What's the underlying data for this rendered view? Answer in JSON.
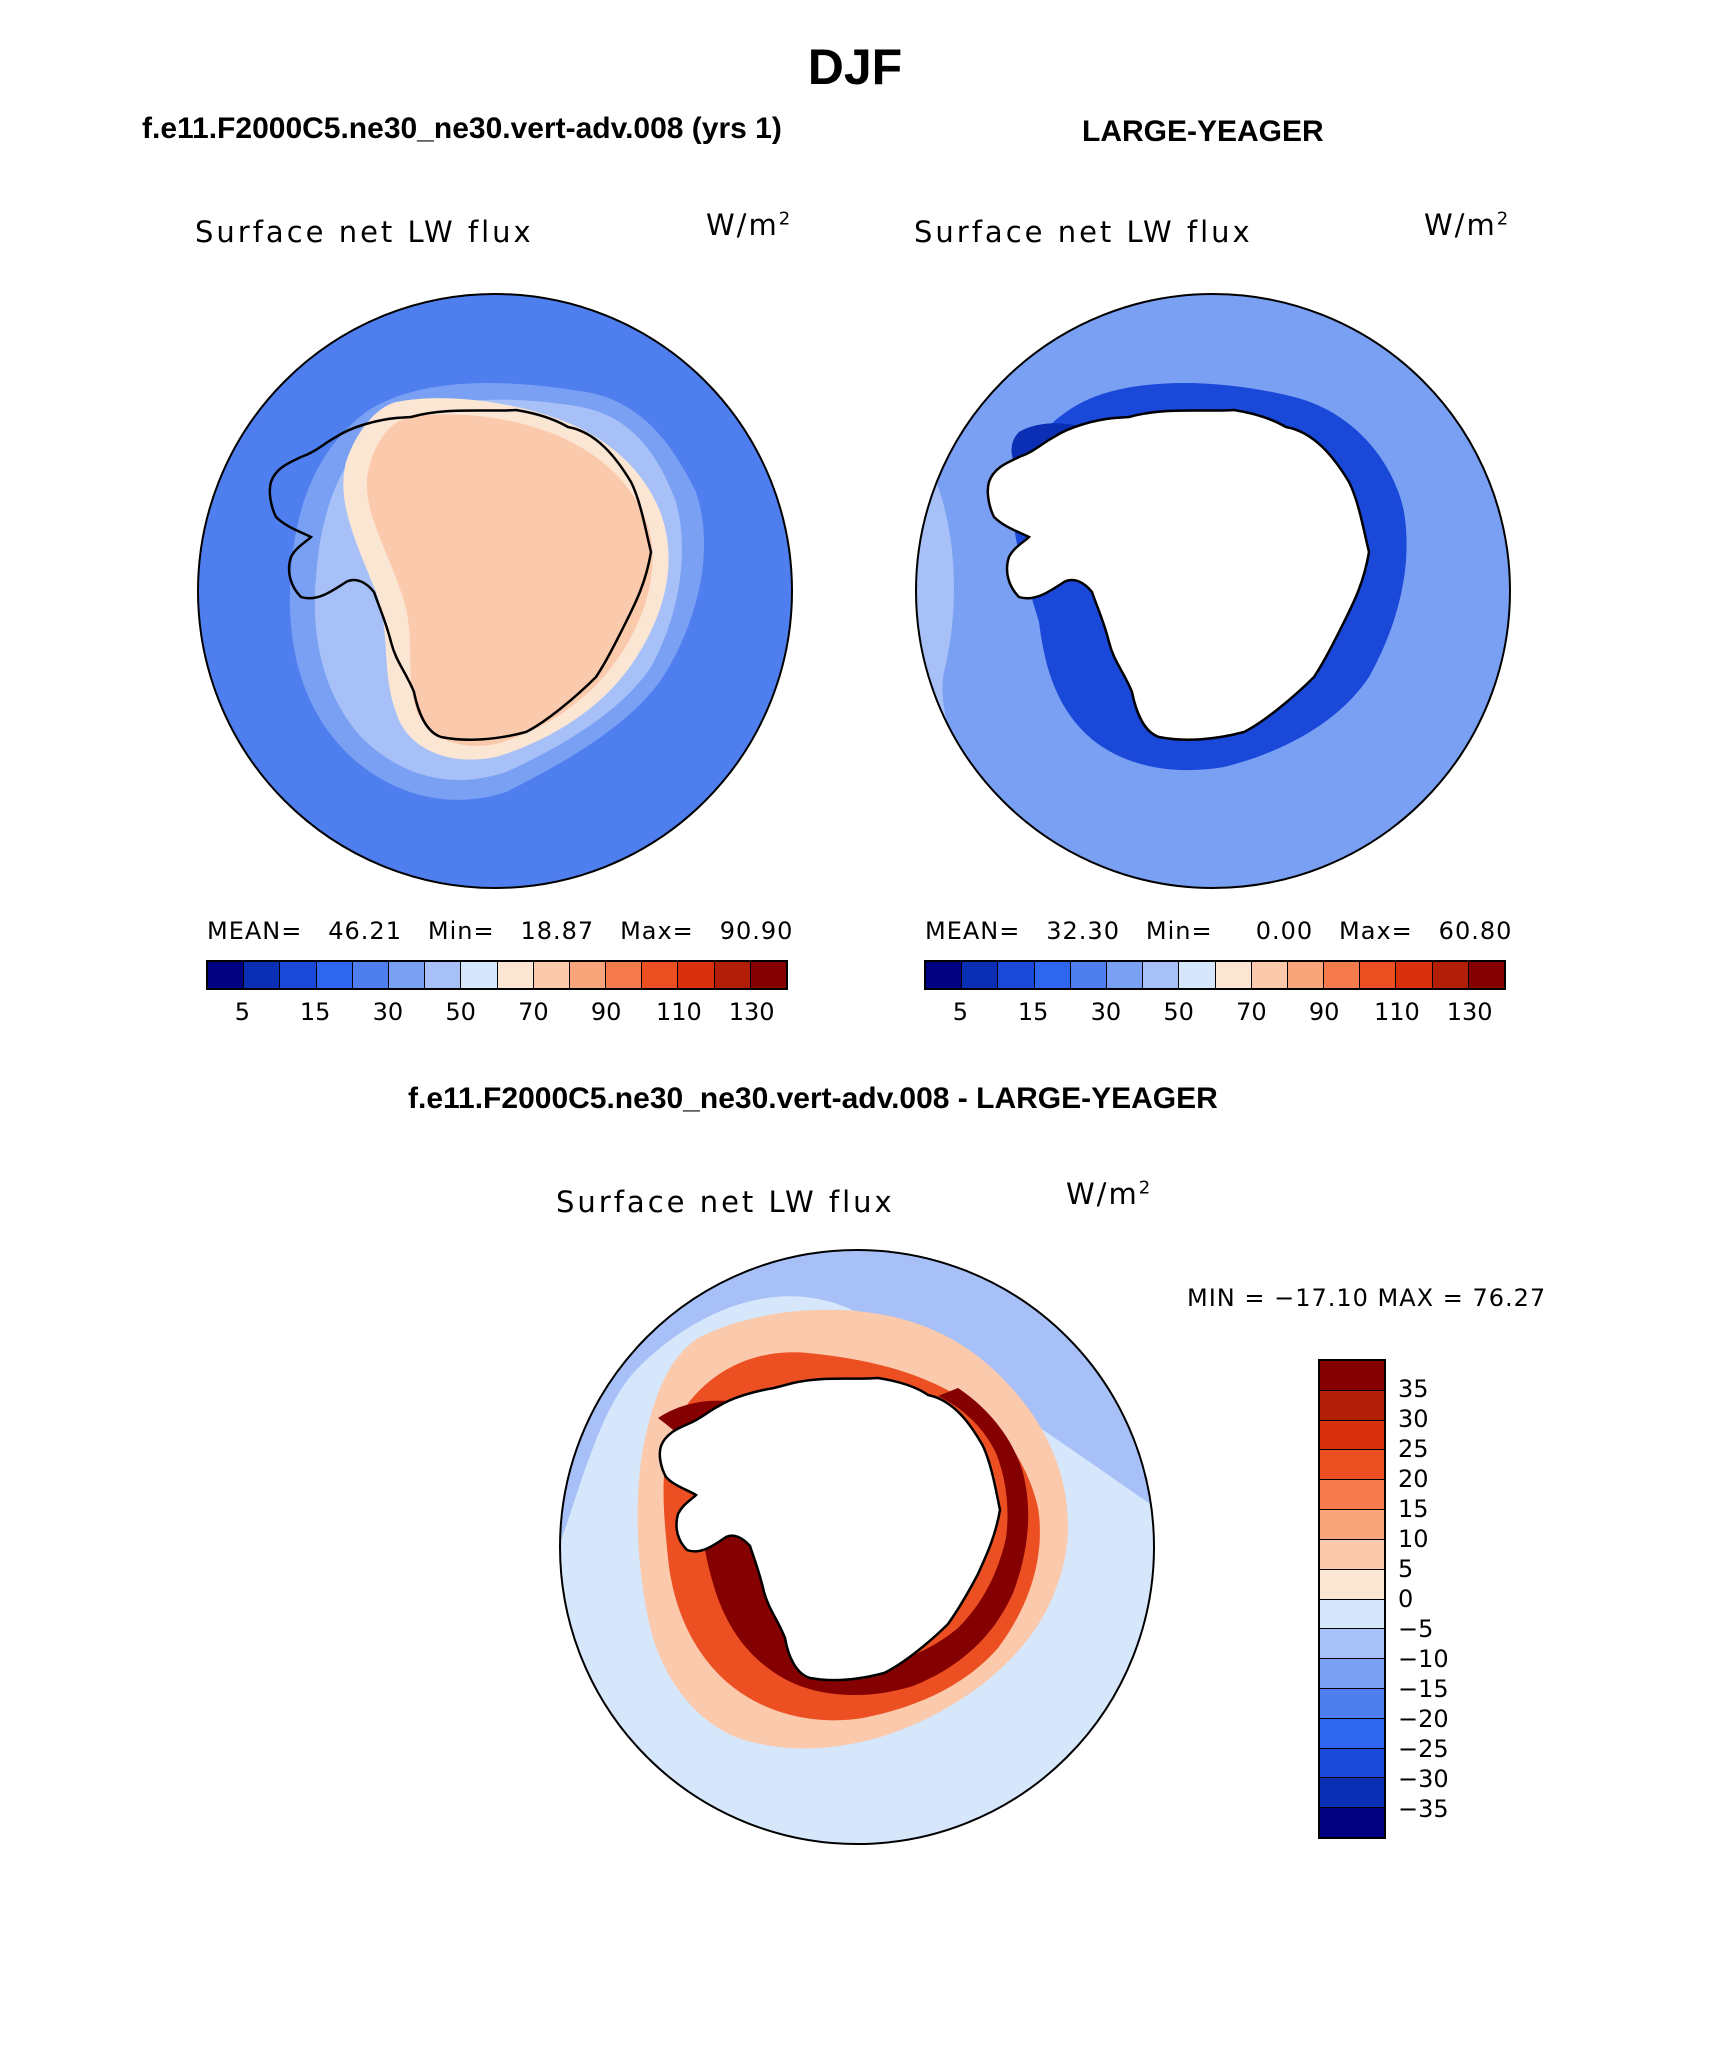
{
  "title": "DJF",
  "chart_data": [
    {
      "type": "heatmap",
      "projection": "south-polar-stereographic",
      "case_title": "f.e11.F2000C5.ne30_ne30.vert-adv.008 (yrs 1)",
      "label": "Surface net LW flux",
      "units_base": "W/m",
      "units_exp": "2",
      "stats": {
        "mean_label": "MEAN=",
        "mean": "46.21",
        "min_label": "Min=",
        "min": "18.87",
        "max_label": "Max=",
        "max": "90.90"
      },
      "colorbar": {
        "levels": [
          "5",
          "15",
          "30",
          "50",
          "70",
          "90",
          "110",
          "130"
        ],
        "colors": [
          "#000080",
          "#0b2fb4",
          "#1a48d8",
          "#2f66ef",
          "#4f7fef",
          "#7aa0f3",
          "#a7c0f7",
          "#d6e6fb",
          "#fbe6d4",
          "#fbc9ac",
          "#f8a57c",
          "#f57a4c",
          "#ec5022",
          "#d9300e",
          "#b21e08",
          "#850000"
        ]
      },
      "field_colors": {
        "ocean": "#4f7fef",
        "coast": "#7aa0f3",
        "shelf": "#a7c0f7",
        "margin": "#fbe6d4",
        "interior": "#fbc9ac"
      }
    },
    {
      "type": "heatmap",
      "projection": "south-polar-stereographic",
      "case_title": "LARGE-YEAGER",
      "label": "Surface net LW flux",
      "units_base": "W/m",
      "units_exp": "2",
      "stats": {
        "mean_label": "MEAN=",
        "mean": "32.30",
        "min_label": "Min=",
        "min": "0.00",
        "max_label": "Max=",
        "max": "60.80"
      },
      "colorbar": {
        "levels": [
          "5",
          "15",
          "30",
          "50",
          "70",
          "90",
          "110",
          "130"
        ],
        "colors": [
          "#000080",
          "#0b2fb4",
          "#1a48d8",
          "#2f66ef",
          "#4f7fef",
          "#7aa0f3",
          "#a7c0f7",
          "#d6e6fb",
          "#fbe6d4",
          "#fbc9ac",
          "#f8a57c",
          "#f57a4c",
          "#ec5022",
          "#d9300e",
          "#b21e08",
          "#850000"
        ]
      },
      "field_colors": {
        "ocean": "#7aa0f3",
        "outer": "#a7c0f7",
        "coast": "#1a48d8",
        "deep": "#0b2fb4",
        "land": "#ffffff"
      }
    },
    {
      "type": "heatmap",
      "projection": "south-polar-stereographic",
      "case_title": "f.e11.F2000C5.ne30_ne30.vert-adv.008 - LARGE-YEAGER",
      "label": "Surface net LW flux",
      "units_base": "W/m",
      "units_exp": "2",
      "stats_text": "MIN = −17.10 MAX =   76.27",
      "colorbar": {
        "levels": [
          "35",
          "30",
          "25",
          "20",
          "15",
          "10",
          "5",
          "0",
          "−5",
          "−10",
          "−15",
          "−20",
          "−25",
          "−30",
          "−35"
        ],
        "colors": [
          "#850000",
          "#b21e08",
          "#d9300e",
          "#ec5022",
          "#f57a4c",
          "#f8a57c",
          "#fbc9ac",
          "#fbe6d4",
          "#d6e6fb",
          "#a7c0f7",
          "#7aa0f3",
          "#4f7fef",
          "#2f66ef",
          "#1a48d8",
          "#0b2fb4",
          "#000080"
        ]
      },
      "field_colors": {
        "ocean": "#d6e6fb",
        "blue": "#a7c0f7",
        "warm": "#fbc9ac",
        "hot": "#ec5022",
        "coast": "#850000",
        "land": "#ffffff"
      }
    }
  ]
}
